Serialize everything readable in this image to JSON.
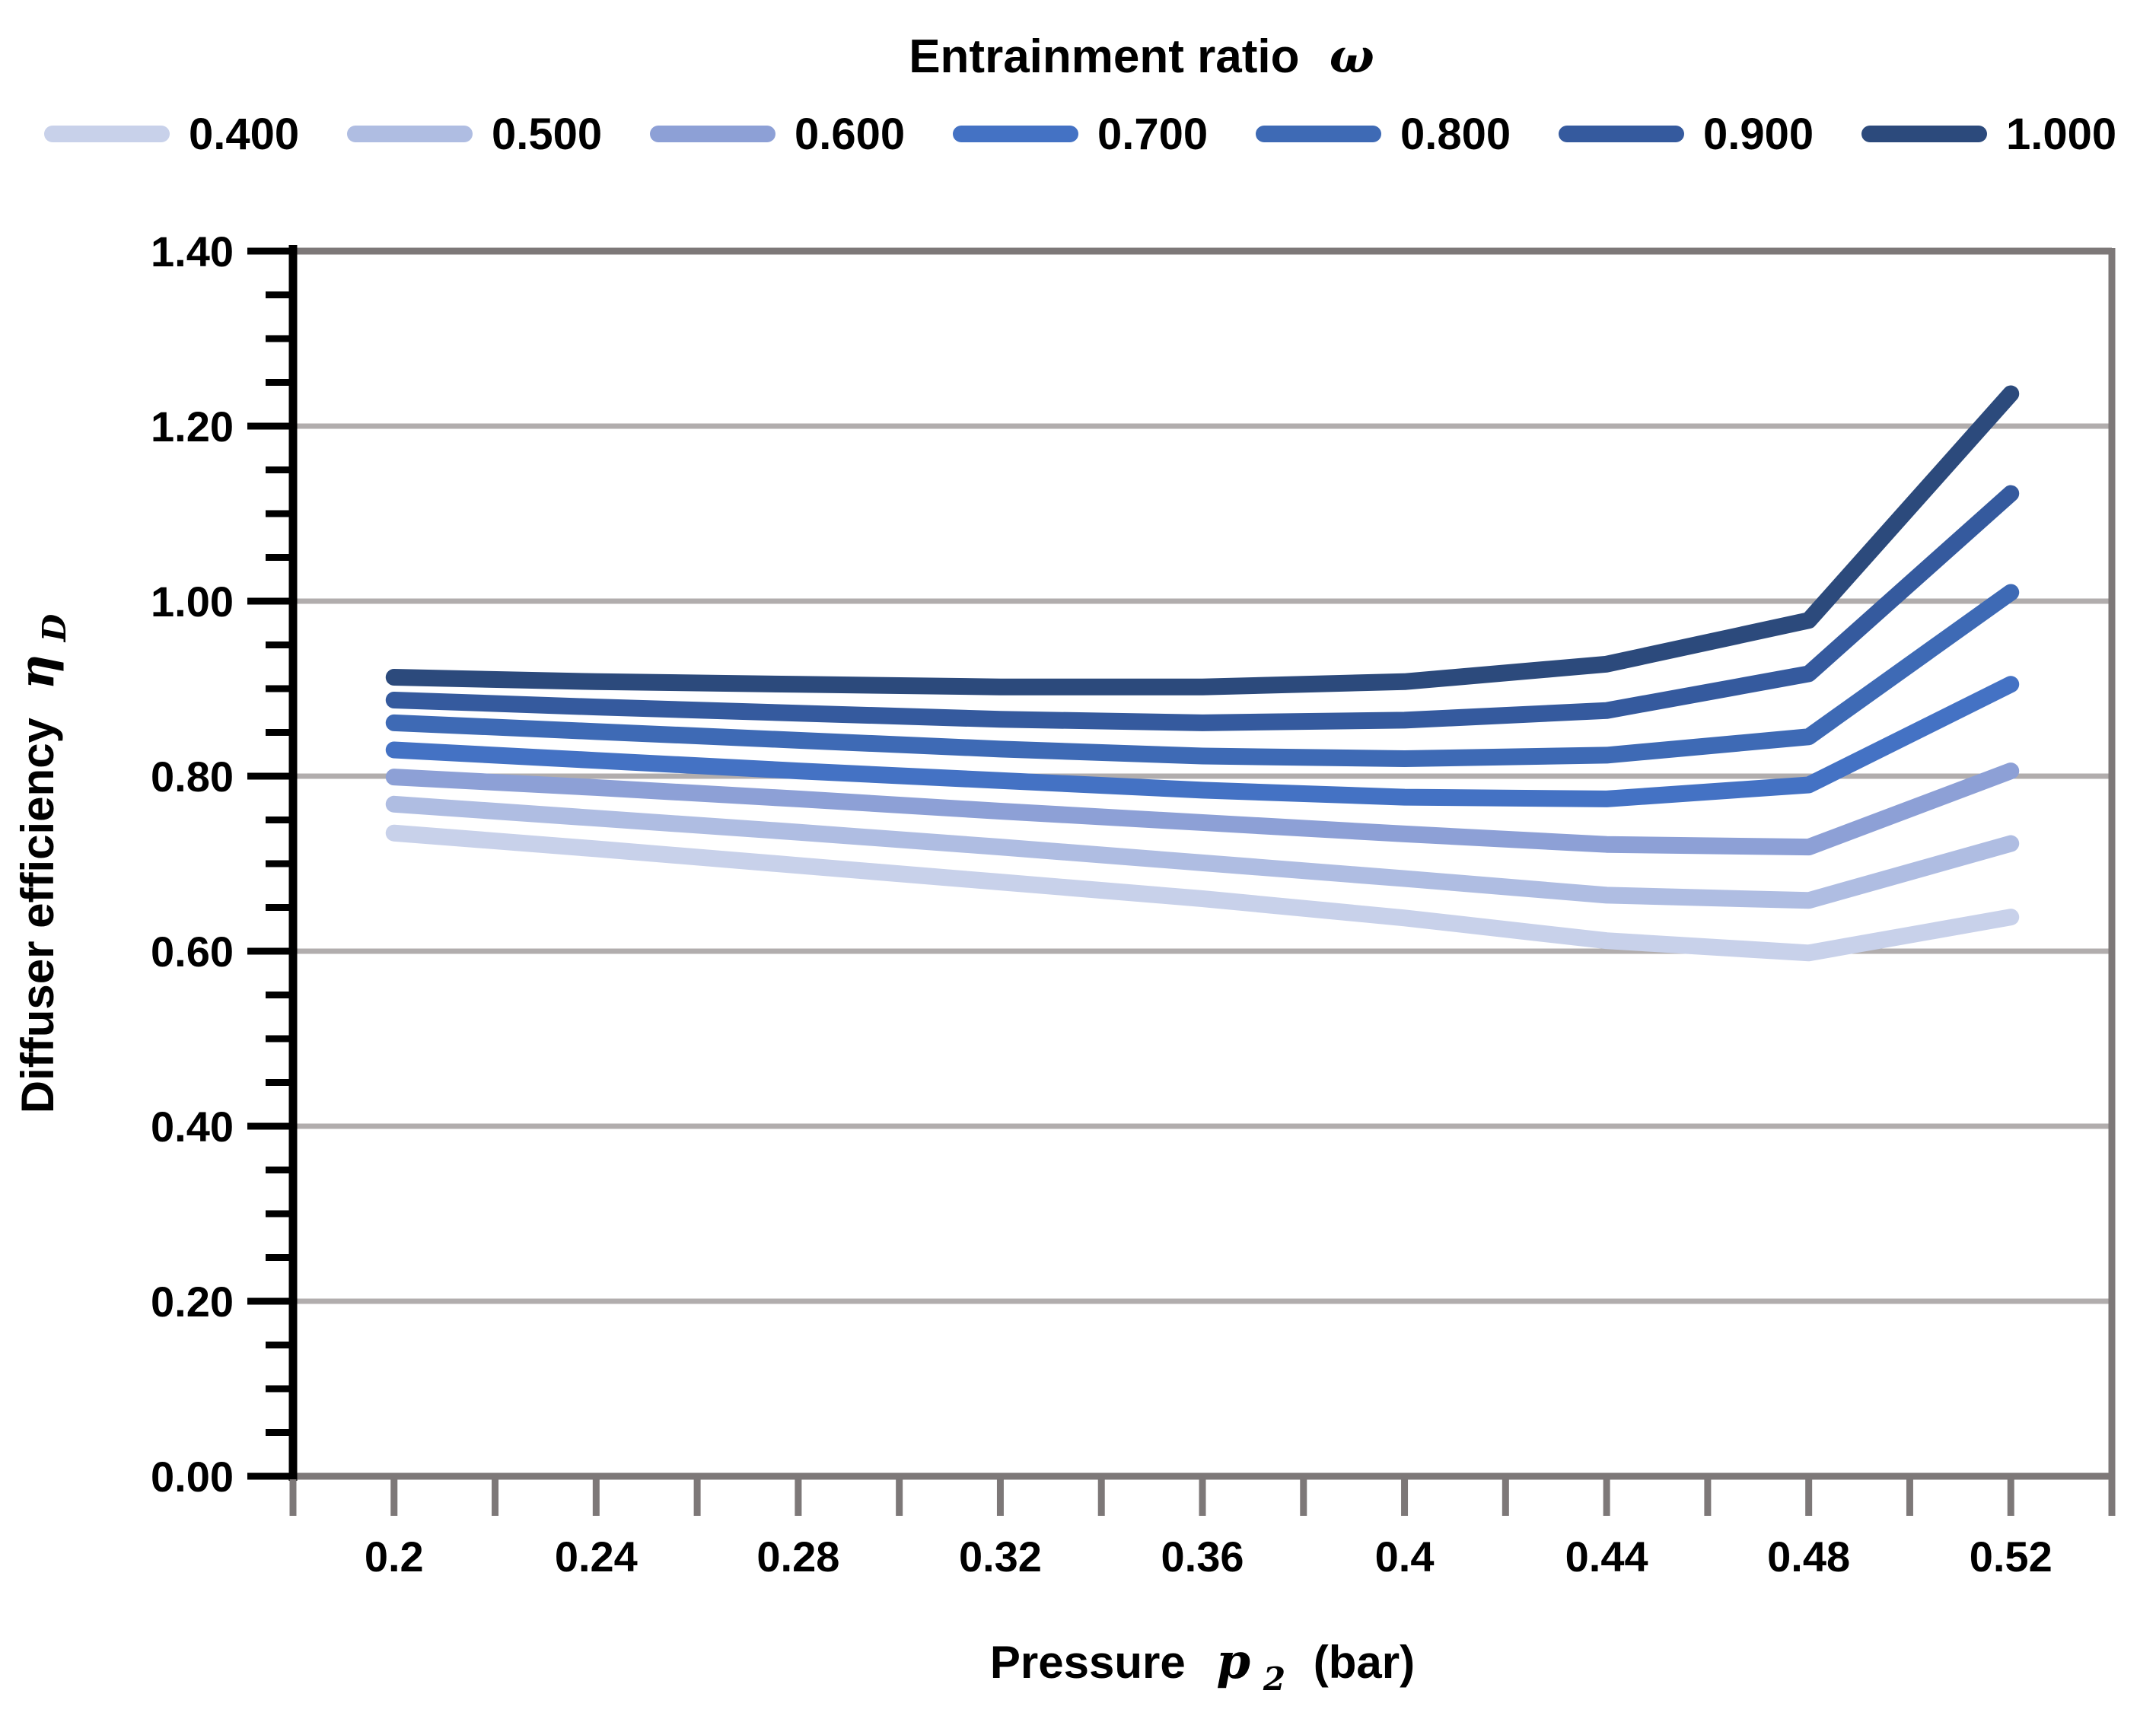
{
  "chart_data": {
    "type": "line",
    "legend_title_text": "Entrainment ratio",
    "legend_title_symbol": "ω",
    "legend_position": "top",
    "grid": true,
    "xlabel": {
      "text": "Pressure",
      "symbol": "p",
      "sub": "2",
      "unit": "(bar)"
    },
    "ylabel": {
      "text": "Diffuser efficiency",
      "symbol": "η",
      "sub": "D"
    },
    "xlim": [
      0.18,
      0.54
    ],
    "ylim": [
      0.0,
      1.4
    ],
    "x_minor_step": 0.02,
    "y_minor_step": 0.05,
    "x": [
      0.2,
      0.24,
      0.28,
      0.32,
      0.36,
      0.4,
      0.44,
      0.48,
      0.52
    ],
    "x_ticks": [
      {
        "v": 0.2,
        "label": "0.2"
      },
      {
        "v": 0.24,
        "label": "0.24"
      },
      {
        "v": 0.28,
        "label": "0.28"
      },
      {
        "v": 0.32,
        "label": "0.32"
      },
      {
        "v": 0.36,
        "label": "0.36"
      },
      {
        "v": 0.4,
        "label": "0.4"
      },
      {
        "v": 0.44,
        "label": "0.44"
      },
      {
        "v": 0.48,
        "label": "0.48"
      },
      {
        "v": 0.52,
        "label": "0.52"
      }
    ],
    "y_ticks": [
      {
        "v": 0.0,
        "label": "0.00"
      },
      {
        "v": 0.2,
        "label": "0.20"
      },
      {
        "v": 0.4,
        "label": "0.40"
      },
      {
        "v": 0.6,
        "label": "0.60"
      },
      {
        "v": 0.8,
        "label": "0.80"
      },
      {
        "v": 1.0,
        "label": "1.00"
      },
      {
        "v": 1.2,
        "label": "1.20"
      },
      {
        "v": 1.4,
        "label": "1.40"
      }
    ],
    "series": [
      {
        "name": "0.400",
        "color": "#c8d1ea",
        "values": [
          0.735,
          0.717,
          0.698,
          0.679,
          0.66,
          0.638,
          0.612,
          0.598,
          0.639
        ]
      },
      {
        "name": "0.500",
        "color": "#afbde2",
        "values": [
          0.768,
          0.752,
          0.736,
          0.719,
          0.701,
          0.683,
          0.664,
          0.658,
          0.723
        ]
      },
      {
        "name": "0.600",
        "color": "#8da0d6",
        "values": [
          0.799,
          0.787,
          0.774,
          0.76,
          0.747,
          0.734,
          0.722,
          0.719,
          0.806
        ]
      },
      {
        "name": "0.700",
        "color": "#4472c4",
        "values": [
          0.83,
          0.818,
          0.806,
          0.795,
          0.784,
          0.776,
          0.774,
          0.79,
          0.905
        ]
      },
      {
        "name": "0.800",
        "color": "#3e6ab5",
        "values": [
          0.861,
          0.851,
          0.841,
          0.831,
          0.823,
          0.82,
          0.824,
          0.845,
          1.01
        ]
      },
      {
        "name": "0.900",
        "color": "#355a9e",
        "values": [
          0.887,
          0.879,
          0.872,
          0.865,
          0.861,
          0.864,
          0.875,
          0.917,
          1.123
        ]
      },
      {
        "name": "1.000",
        "color": "#2c4a7c",
        "values": [
          0.913,
          0.908,
          0.905,
          0.902,
          0.902,
          0.908,
          0.928,
          0.978,
          1.237
        ]
      }
    ],
    "colors": {
      "gridline": "#b1adad",
      "axis_gray": "#7d7878",
      "axis_black": "#000000",
      "text": "#000000",
      "background": "#ffffff"
    }
  }
}
